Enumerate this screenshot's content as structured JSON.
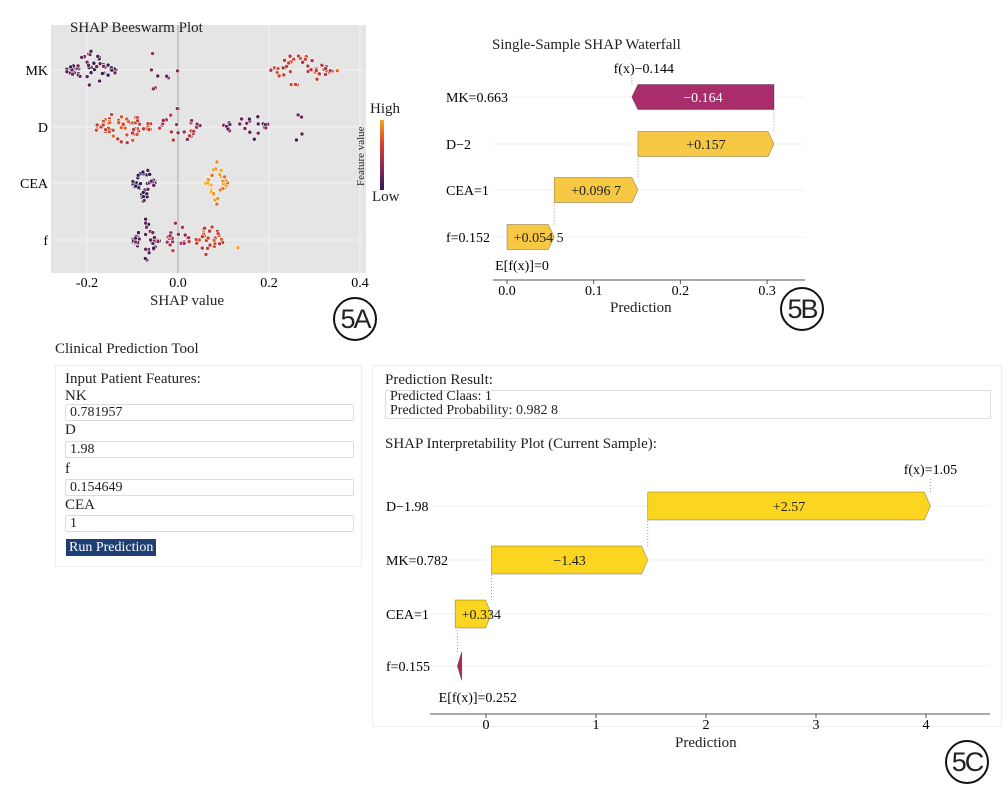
{
  "panel_labels": {
    "a": "5A",
    "b": "5B",
    "c": "5C"
  },
  "chart_data": [
    {
      "type": "scatter",
      "title": "SHAP Beeswarm Plot",
      "xlabel": "SHAP value",
      "xlim": [
        -0.27,
        0.42
      ],
      "xticks": [
        "-0.2",
        "0.0",
        "0.2",
        "0.4"
      ],
      "xtick_values": [
        -0.2,
        0,
        0.2,
        0.4
      ],
      "features": [
        "MK",
        "D",
        "CEA",
        "f"
      ],
      "colorbar": {
        "label": "Feature value",
        "high": "High",
        "low": "Low",
        "colors": [
          "#2d1a4f",
          "#8e2a5c",
          "#d5432c",
          "#f7a21b"
        ]
      },
      "clusters": [
        {
          "feature": "MK",
          "groups": [
            {
              "center": -0.19,
              "spread": 0.055,
              "n": 55,
              "level": 0.15
            },
            {
              "center": -0.05,
              "spread": 0.05,
              "n": 8,
              "level": 0.2
            },
            {
              "center": 0.27,
              "spread": 0.07,
              "n": 45,
              "level": 0.6
            },
            {
              "center": 0.37,
              "spread": 0.02,
              "n": 2,
              "level": 0.9
            }
          ]
        },
        {
          "feature": "D",
          "groups": [
            {
              "center": -0.12,
              "spread": 0.06,
              "n": 65,
              "level": 0.65
            },
            {
              "center": 0.0,
              "spread": 0.05,
              "n": 25,
              "level": 0.45
            },
            {
              "center": 0.15,
              "spread": 0.05,
              "n": 25,
              "level": 0.2
            },
            {
              "center": 0.26,
              "spread": 0.03,
              "n": 4,
              "level": 0.1
            }
          ]
        },
        {
          "feature": "CEA",
          "groups": [
            {
              "center": -0.075,
              "spread": 0.025,
              "n": 45,
              "level": 0.05
            },
            {
              "center": 0.085,
              "spread": 0.025,
              "n": 45,
              "level": 0.95
            }
          ]
        },
        {
          "feature": "f",
          "groups": [
            {
              "center": -0.07,
              "spread": 0.03,
              "n": 45,
              "level": 0.15
            },
            {
              "center": 0.0,
              "spread": 0.025,
              "n": 20,
              "level": 0.45
            },
            {
              "center": 0.07,
              "spread": 0.03,
              "n": 30,
              "level": 0.65
            },
            {
              "center": 0.13,
              "spread": 0.003,
              "n": 1,
              "level": 0.9
            }
          ]
        }
      ]
    },
    {
      "type": "bar",
      "subtype": "waterfall",
      "title": "Single-Sample SHAP Waterfall",
      "xlabel": "Prediction",
      "xlim": [
        -0.03,
        0.345
      ],
      "xticks": [
        "0.0",
        "0.1",
        "0.2",
        "0.3"
      ],
      "xtick_values": [
        0,
        0.1,
        0.2,
        0.3
      ],
      "fx_label": "f(x)−0.144",
      "base_label": "E[f(x)]=0",
      "bars": [
        {
          "feature": "MK=0.663",
          "start": 0.308,
          "end": 0.144,
          "label": "−0.164",
          "color": "#a82d6a"
        },
        {
          "feature": "D−2",
          "start": 0.151,
          "end": 0.308,
          "label": "+0.157",
          "color": "#f7c843"
        },
        {
          "feature": "CEA=1",
          "start": 0.0545,
          "end": 0.151,
          "label": "+0.096 7",
          "color": "#f7c843"
        },
        {
          "feature": "f=0.152",
          "start": 0.0,
          "end": 0.0545,
          "label": "+0.054 5",
          "color": "#f7c843"
        }
      ]
    },
    {
      "type": "bar",
      "subtype": "waterfall",
      "title": "SHAP Interpretability Plot (Current Sample):",
      "xlabel": "Prediction",
      "xlim": [
        -0.5,
        4.65
      ],
      "xticks": [
        "0",
        "1",
        "2",
        "3",
        "4"
      ],
      "xtick_values": [
        0,
        1,
        2,
        3,
        4
      ],
      "fx_label": "f(x)=1.05",
      "base_label": "E[f(x)]=0.252",
      "bars": [
        {
          "feature": "D−1.98",
          "start": 1.47,
          "end": 4.04,
          "label": "+2.57",
          "color": "#fbd520"
        },
        {
          "feature": "MK=0.782",
          "start": 0.05,
          "end": 1.47,
          "label": "−1.43",
          "color": "#fbd520"
        },
        {
          "feature": "CEA=1",
          "start": -0.28,
          "end": 0.05,
          "label": "+0.334",
          "color": "#fbd520"
        },
        {
          "feature": "f=0.155",
          "start": -0.22,
          "end": -0.26,
          "label": "",
          "color": "#a82d4a"
        }
      ]
    }
  ],
  "tool": {
    "title": "Clinical Prediction Tool",
    "inputs_heading": "Input Patient Features:",
    "fields": [
      {
        "label": "NK",
        "value": "0.781957"
      },
      {
        "label": "D",
        "value": "1.98"
      },
      {
        "label": "f",
        "value": "0.154649"
      },
      {
        "label": "CEA",
        "value": "1"
      }
    ],
    "run_button": "Run Prediction",
    "result_heading": "Prediction Result:",
    "predicted_class": "Predicted Claas: 1",
    "predicted_probability": "Predicted Probability: 0.982 8"
  }
}
